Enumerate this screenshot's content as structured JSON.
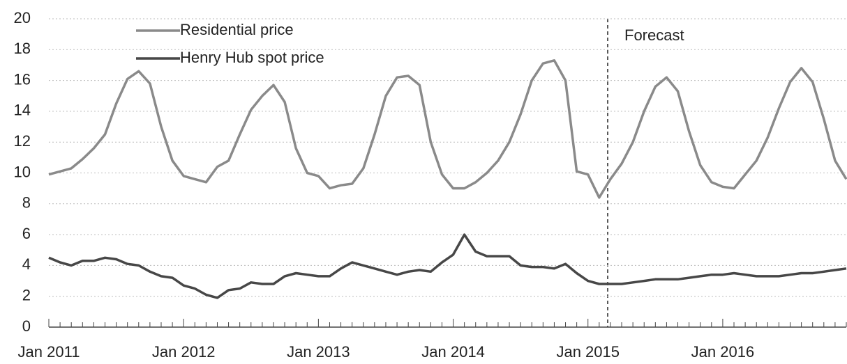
{
  "chart_data": {
    "type": "line",
    "categories": [
      "Jan 2011",
      null,
      null,
      null,
      null,
      null,
      null,
      null,
      null,
      null,
      null,
      null,
      "Jan 2012",
      null,
      null,
      null,
      null,
      null,
      null,
      null,
      null,
      null,
      null,
      null,
      "Jan 2013",
      null,
      null,
      null,
      null,
      null,
      null,
      null,
      null,
      null,
      null,
      null,
      "Jan 2014",
      null,
      null,
      null,
      null,
      null,
      null,
      null,
      null,
      null,
      null,
      null,
      "Jan 2015",
      null,
      null,
      null,
      null,
      null,
      null,
      null,
      null,
      null,
      null,
      null,
      "Jan 2016",
      null,
      null,
      null,
      null,
      null,
      null,
      null,
      null,
      null,
      null,
      null
    ],
    "series": [
      {
        "name": "Residential price",
        "color": "#8a8a8a",
        "values": [
          9.9,
          10.1,
          10.3,
          10.9,
          11.6,
          12.5,
          14.5,
          16.1,
          16.6,
          15.8,
          13.0,
          10.8,
          9.8,
          9.6,
          9.4,
          10.4,
          10.8,
          12.5,
          14.1,
          15.0,
          15.7,
          14.6,
          11.6,
          10.0,
          9.8,
          9.0,
          9.2,
          9.3,
          10.3,
          12.5,
          15.0,
          16.2,
          16.3,
          15.7,
          12.0,
          9.9,
          9.0,
          9.0,
          9.4,
          10.0,
          10.8,
          12.0,
          13.8,
          16.0,
          17.1,
          17.3,
          16.0,
          10.1,
          9.9,
          8.4,
          9.6,
          10.6,
          12.0,
          14.0,
          15.6,
          16.2,
          15.3,
          12.7,
          10.5,
          9.4,
          9.1,
          9.0,
          9.9,
          10.8,
          12.3,
          14.2,
          15.9,
          16.8,
          15.9,
          13.5,
          10.8,
          9.6
        ]
      },
      {
        "name": "Henry Hub spot price",
        "color": "#474747",
        "values": [
          4.5,
          4.2,
          4.0,
          4.3,
          4.3,
          4.5,
          4.4,
          4.1,
          4.0,
          3.6,
          3.3,
          3.2,
          2.7,
          2.5,
          2.1,
          1.9,
          2.4,
          2.5,
          2.9,
          2.8,
          2.8,
          3.3,
          3.5,
          3.4,
          3.3,
          3.3,
          3.8,
          4.2,
          4.0,
          3.8,
          3.6,
          3.4,
          3.6,
          3.7,
          3.6,
          4.2,
          4.7,
          6.0,
          4.9,
          4.6,
          4.6,
          4.6,
          4.0,
          3.9,
          3.9,
          3.8,
          4.1,
          3.5,
          3.0,
          2.8,
          2.8,
          2.8,
          2.9,
          3.0,
          3.1,
          3.1,
          3.1,
          3.2,
          3.3,
          3.4,
          3.4,
          3.5,
          3.4,
          3.3,
          3.3,
          3.3,
          3.4,
          3.5,
          3.5,
          3.6,
          3.7,
          3.8
        ]
      }
    ],
    "ylim": [
      0,
      20
    ],
    "yticks": [
      0,
      2,
      4,
      6,
      8,
      10,
      12,
      14,
      16,
      18,
      20
    ],
    "grid": true,
    "annotation": "Forecast"
  }
}
